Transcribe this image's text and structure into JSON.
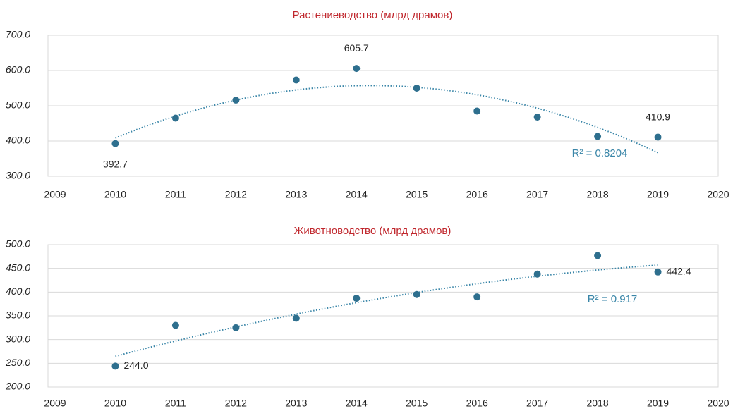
{
  "chart_data": [
    {
      "type": "scatter",
      "title": "Растениеводство (млрд драмов)",
      "x": [
        2010,
        2011,
        2012,
        2013,
        2014,
        2015,
        2016,
        2017,
        2018,
        2019
      ],
      "values": [
        392.7,
        465,
        516,
        573,
        605.7,
        550,
        485,
        468,
        413,
        410.9
      ],
      "value_labels": [
        "392.7",
        null,
        null,
        null,
        "605.7",
        null,
        null,
        null,
        null,
        "410.9"
      ],
      "color": "#2e6f8e",
      "xlim": [
        2009,
        2020
      ],
      "xticks": [
        2009,
        2010,
        2011,
        2012,
        2013,
        2014,
        2015,
        2016,
        2017,
        2018,
        2019,
        2020
      ],
      "ylim": [
        300,
        700
      ],
      "yticks": [
        {
          "value": 300,
          "label": "300.0"
        },
        {
          "value": 400,
          "label": "400.0"
        },
        {
          "value": 500,
          "label": "500.0"
        },
        {
          "value": 600,
          "label": "600.0"
        },
        {
          "value": 700,
          "label": "700.0"
        }
      ],
      "grid": true,
      "annotation": "R² = 0.8204"
    },
    {
      "type": "scatter",
      "title": "Животноводство (млрд драмов)",
      "x": [
        2010,
        2011,
        2012,
        2013,
        2014,
        2015,
        2016,
        2017,
        2018,
        2019
      ],
      "values": [
        244,
        330,
        325,
        345,
        387,
        395,
        390,
        438,
        477,
        442.4
      ],
      "value_labels": [
        "244.0",
        null,
        null,
        null,
        null,
        null,
        null,
        null,
        null,
        "442.4"
      ],
      "color": "#2e6f8e",
      "xlim": [
        2009,
        2020
      ],
      "xticks": [
        2009,
        2010,
        2011,
        2012,
        2013,
        2014,
        2015,
        2016,
        2017,
        2018,
        2019,
        2020
      ],
      "ylim": [
        200,
        500
      ],
      "yticks": [
        {
          "value": 200,
          "label": "200.0"
        },
        {
          "value": 250,
          "label": "250.0"
        },
        {
          "value": 300,
          "label": "300.0"
        },
        {
          "value": 350,
          "label": "350.0"
        },
        {
          "value": 400,
          "label": "400.0"
        },
        {
          "value": 450,
          "label": "450.0"
        },
        {
          "value": 500,
          "label": "500.0"
        }
      ],
      "grid": true,
      "annotation": "R² = 0.917"
    }
  ]
}
